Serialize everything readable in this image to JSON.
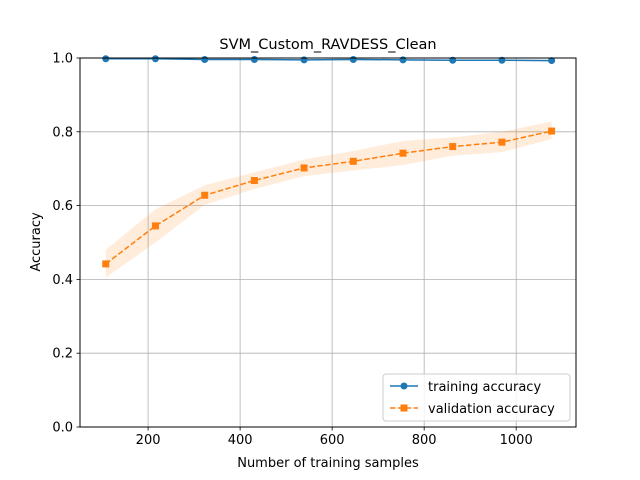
{
  "chart_data": {
    "type": "line",
    "title": "SVM_Custom_RAVDESS_Clean",
    "xlabel": "Number of training samples",
    "ylabel": "Accuracy",
    "xlim": [
      52,
      1130
    ],
    "ylim": [
      0,
      1.0
    ],
    "x_ticks": [
      200,
      400,
      600,
      800,
      1000
    ],
    "y_ticks": [
      0.0,
      0.2,
      0.4,
      0.6,
      0.8,
      1.0
    ],
    "grid": true,
    "legend_position": "lower-right",
    "x": [
      108,
      216,
      323,
      431,
      539,
      646,
      754,
      862,
      969,
      1077
    ],
    "series": [
      {
        "name": "training accuracy",
        "color": "#1f77b4",
        "line_style": "solid",
        "marker": "circle",
        "values": [
          0.998,
          0.998,
          0.996,
          0.996,
          0.995,
          0.996,
          0.995,
          0.994,
          0.994,
          0.993
        ],
        "band_lower": [
          0.996,
          0.997,
          0.994,
          0.994,
          0.993,
          0.994,
          0.993,
          0.992,
          0.992,
          0.991
        ],
        "band_upper": [
          1.0,
          1.0,
          0.998,
          0.998,
          0.997,
          0.998,
          0.997,
          0.996,
          0.996,
          0.995
        ]
      },
      {
        "name": "validation accuracy",
        "color": "#ff7f0e",
        "line_style": "dashed",
        "marker": "square",
        "values": [
          0.442,
          0.545,
          0.628,
          0.668,
          0.702,
          0.72,
          0.742,
          0.76,
          0.772,
          0.802
        ],
        "band_lower": [
          0.405,
          0.5,
          0.602,
          0.645,
          0.68,
          0.695,
          0.71,
          0.735,
          0.745,
          0.78
        ],
        "band_upper": [
          0.48,
          0.59,
          0.655,
          0.69,
          0.725,
          0.748,
          0.775,
          0.785,
          0.8,
          0.828
        ]
      }
    ]
  }
}
